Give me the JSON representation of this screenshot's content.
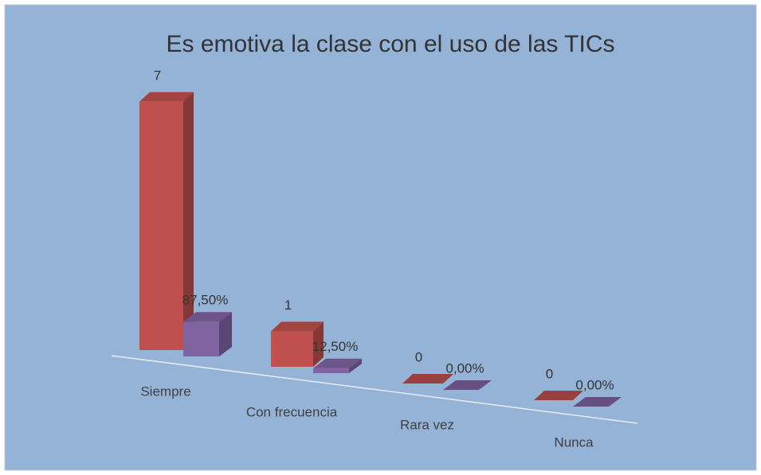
{
  "chart_data": {
    "type": "bar3d",
    "title": "Es emotiva la clase con el uso de las TICs",
    "categories": [
      "Siempre",
      "Con frecuencia",
      "Rara vez",
      "Nunca"
    ],
    "series": [
      {
        "color": "#c0504d",
        "values": [
          7,
          1,
          0,
          0
        ]
      },
      {
        "color": "#8064a2",
        "values": [
          87.5,
          12.5,
          0,
          0
        ],
        "value_labels": [
          "87,50%",
          "12,50%",
          "0,00%",
          "0,00%"
        ]
      }
    ]
  }
}
